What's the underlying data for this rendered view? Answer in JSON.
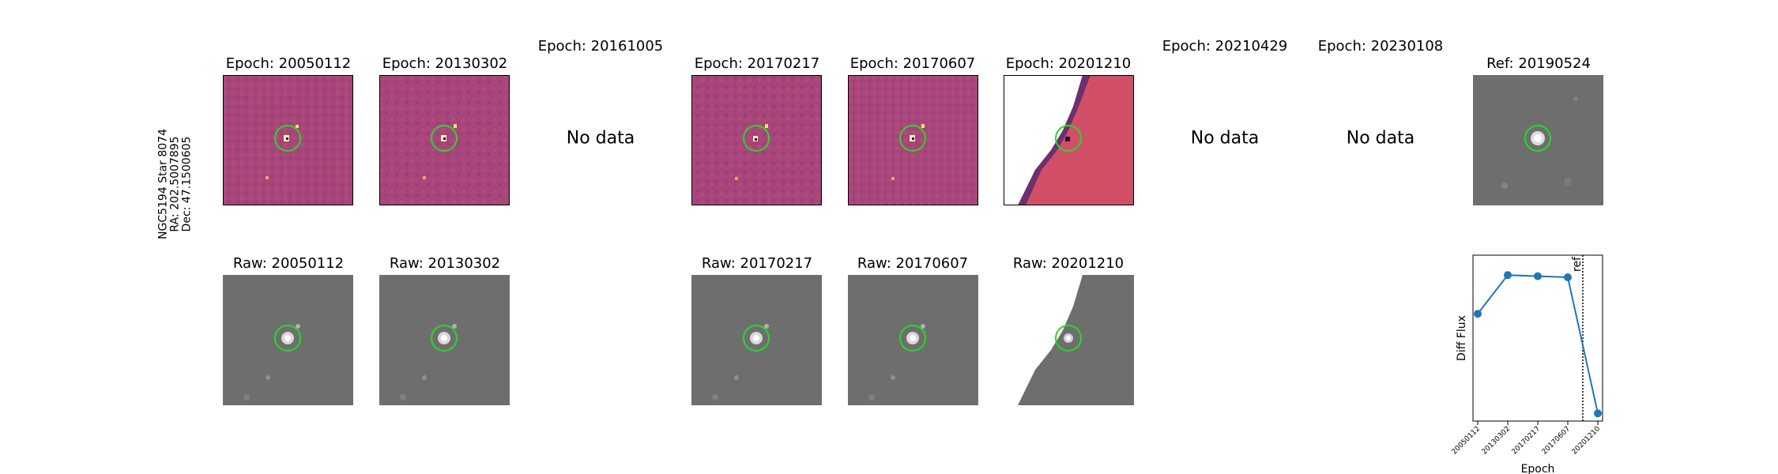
{
  "star": {
    "name": "NGC5194 Star 8074",
    "ra": "RA: 202.5007895",
    "dec": "Dec: 47.1500605"
  },
  "no_data_label": "No data",
  "diff_row": [
    {
      "title": "Epoch: 20050112",
      "has_data": true
    },
    {
      "title": "Epoch: 20130302",
      "has_data": true
    },
    {
      "title": "Epoch: 20161005",
      "has_data": false
    },
    {
      "title": "Epoch: 20170217",
      "has_data": true
    },
    {
      "title": "Epoch: 20170607",
      "has_data": true
    },
    {
      "title": "Epoch: 20201210",
      "has_data": true,
      "partial": true
    },
    {
      "title": "Epoch: 20210429",
      "has_data": false
    },
    {
      "title": "Epoch: 20230108",
      "has_data": false
    }
  ],
  "ref": {
    "title": "Ref: 20190524"
  },
  "raw_row": [
    {
      "title": "Raw: 20050112"
    },
    {
      "title": "Raw: 20130302"
    },
    {
      "title": "Raw: 20170217"
    },
    {
      "title": "Raw: 20170607"
    },
    {
      "title": "Raw: 20201210",
      "partial": true
    }
  ],
  "colors": {
    "diff_bg": "#a8457a",
    "diff_bg_partial": "#d24f68",
    "raw_bg": "#6e6e6e",
    "aperture": "#22dd22",
    "series": "#1f77b4"
  },
  "chart_data": {
    "type": "line",
    "xlabel": "Epoch",
    "ylabel": "Diff Flux",
    "categories": [
      "20050112",
      "20130302",
      "20170217",
      "20170607",
      "20201210"
    ],
    "values": [
      0.62,
      0.97,
      0.96,
      0.95,
      -0.28
    ],
    "ylim": [
      -0.35,
      1.15
    ],
    "reference_line": {
      "x": 3.5,
      "label": "ref"
    },
    "grid": false
  }
}
